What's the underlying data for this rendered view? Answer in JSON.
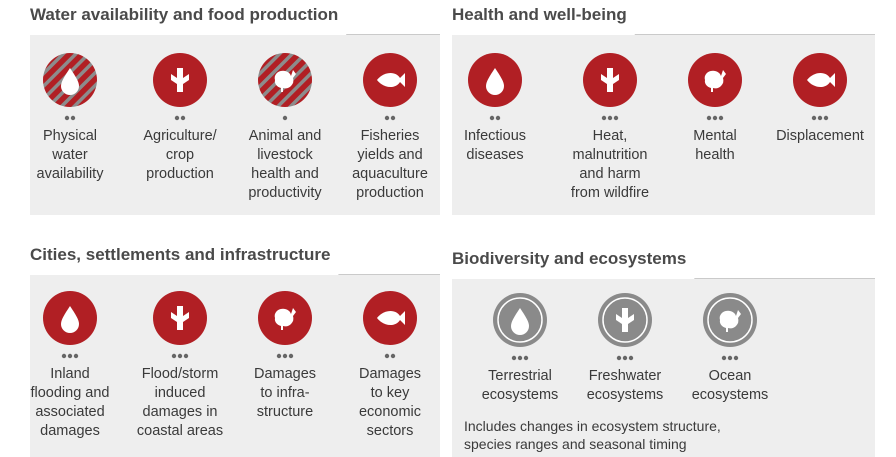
{
  "panels": [
    {
      "title": "Water availability and food production",
      "items": [
        {
          "label": [
            "Physical",
            "water",
            "availability"
          ],
          "confidence": 2,
          "hatched": true
        },
        {
          "label": [
            "Agriculture/",
            "crop",
            "production"
          ],
          "confidence": 2,
          "hatched": false
        },
        {
          "label": [
            "Animal and",
            "livestock",
            "health and",
            "productivity"
          ],
          "confidence": 1,
          "hatched": true
        },
        {
          "label": [
            "Fisheries",
            "yields and",
            "aquaculture",
            "production"
          ],
          "confidence": 2,
          "hatched": false
        }
      ]
    },
    {
      "title": "Health and well-being",
      "items": [
        {
          "label": [
            "Infectious",
            "diseases"
          ],
          "confidence": 2,
          "hatched": false
        },
        {
          "label": [
            "Heat,",
            "malnutrition",
            "and harm",
            "from wildfire"
          ],
          "confidence": 3,
          "hatched": false
        },
        {
          "label": [
            "Mental",
            "health"
          ],
          "confidence": 3,
          "hatched": false
        },
        {
          "label": [
            "Displacement"
          ],
          "confidence": 3,
          "hatched": false
        }
      ]
    },
    {
      "title": "Cities, settlements and infrastructure",
      "items": [
        {
          "label": [
            "Inland",
            "flooding and",
            "associated",
            "damages"
          ],
          "confidence": 3,
          "hatched": false
        },
        {
          "label": [
            "Flood/storm",
            "induced",
            "damages in",
            "coastal areas"
          ],
          "confidence": 3,
          "hatched": false
        },
        {
          "label": [
            "Damages",
            "to infra-",
            "structure"
          ],
          "confidence": 3,
          "hatched": false
        },
        {
          "label": [
            "Damages",
            "to key",
            "economic",
            "sectors"
          ],
          "confidence": 2,
          "hatched": false
        }
      ]
    },
    {
      "title": "Biodiversity and ecosystems",
      "items": [
        {
          "label": [
            "Terrestrial",
            "ecosystems"
          ],
          "confidence": 3,
          "hatched": false
        },
        {
          "label": [
            "Freshwater",
            "ecosystems"
          ],
          "confidence": 3,
          "hatched": false
        },
        {
          "label": [
            "Ocean",
            "ecosystems"
          ],
          "confidence": 3,
          "hatched": false
        }
      ],
      "note": [
        "Includes changes in ecosystem structure,",
        "species ranges and seasonal timing"
      ]
    }
  ]
}
